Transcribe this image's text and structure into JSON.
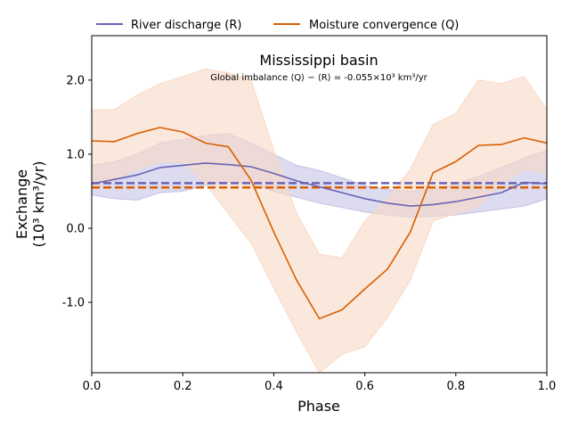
{
  "chart_data": {
    "type": "line",
    "title": "Mississippi basin",
    "subtitle": "Global imbalance ⟨Q⟩ − ⟨R⟩ = -0.055×10³ km³/yr",
    "xlabel": "Phase",
    "ylabel_line1": "Exchange",
    "ylabel_line2": "(10³ km³/yr)",
    "xlim": [
      0,
      1
    ],
    "ylim": [
      -1.95,
      2.6
    ],
    "xticks": [
      0,
      0.2,
      0.4,
      0.6,
      0.8,
      1.0
    ],
    "xtick_labels": [
      "0.0",
      "0.2",
      "0.4",
      "0.6",
      "0.8",
      "1.0"
    ],
    "yticks": [
      -1,
      0,
      1,
      2
    ],
    "ytick_labels": [
      "-1.0",
      "0.0",
      "1.0",
      "2.0"
    ],
    "grid": false,
    "legend_position": "top, outside plot area",
    "series": [
      {
        "name": "River discharge (R)",
        "color": "#6a63b5",
        "band_color": "#c5c3e6",
        "mean_line": 0.61,
        "x": [
          0,
          0.05,
          0.1,
          0.15,
          0.2,
          0.25,
          0.3,
          0.35,
          0.4,
          0.45,
          0.5,
          0.55,
          0.6,
          0.65,
          0.7,
          0.75,
          0.8,
          0.85,
          0.9,
          0.95,
          1.0
        ],
        "y": [
          0.6,
          0.66,
          0.72,
          0.82,
          0.85,
          0.88,
          0.86,
          0.83,
          0.74,
          0.64,
          0.56,
          0.48,
          0.4,
          0.34,
          0.3,
          0.32,
          0.36,
          0.42,
          0.48,
          0.62,
          0.6
        ],
        "lower": [
          0.45,
          0.4,
          0.38,
          0.48,
          0.5,
          0.58,
          0.62,
          0.6,
          0.5,
          0.42,
          0.34,
          0.28,
          0.22,
          0.18,
          0.15,
          0.16,
          0.18,
          0.22,
          0.26,
          0.3,
          0.4
        ],
        "upper": [
          0.85,
          0.9,
          1.0,
          1.15,
          1.2,
          1.25,
          1.28,
          1.15,
          1.0,
          0.85,
          0.78,
          0.68,
          0.58,
          0.52,
          0.5,
          0.52,
          0.6,
          0.7,
          0.82,
          0.95,
          1.05
        ]
      },
      {
        "name": "Moisture convergence (Q)",
        "color": "#d95f02",
        "band_color": "#f8d8c4",
        "mean_line": 0.55,
        "x": [
          0,
          0.05,
          0.1,
          0.15,
          0.2,
          0.25,
          0.3,
          0.35,
          0.4,
          0.45,
          0.5,
          0.55,
          0.6,
          0.65,
          0.7,
          0.75,
          0.8,
          0.85,
          0.9,
          0.95,
          1.0
        ],
        "y": [
          1.18,
          1.17,
          1.28,
          1.36,
          1.3,
          1.15,
          1.1,
          0.65,
          -0.05,
          -0.7,
          -1.22,
          -1.1,
          -0.82,
          -0.55,
          -0.05,
          0.75,
          0.9,
          1.12,
          1.13,
          1.22,
          1.15
        ],
        "lower": [
          0.55,
          0.65,
          0.8,
          0.9,
          0.9,
          0.6,
          0.2,
          -0.2,
          -0.8,
          -1.4,
          -1.95,
          -1.7,
          -1.6,
          -1.2,
          -0.7,
          0.1,
          0.2,
          0.3,
          0.6,
          0.8,
          0.75
        ],
        "upper": [
          1.6,
          1.6,
          1.8,
          1.95,
          2.05,
          2.15,
          2.1,
          2.0,
          1.05,
          0.2,
          -0.35,
          -0.4,
          0.1,
          0.4,
          0.8,
          1.4,
          1.55,
          2.0,
          1.95,
          2.05,
          1.6
        ]
      }
    ]
  }
}
